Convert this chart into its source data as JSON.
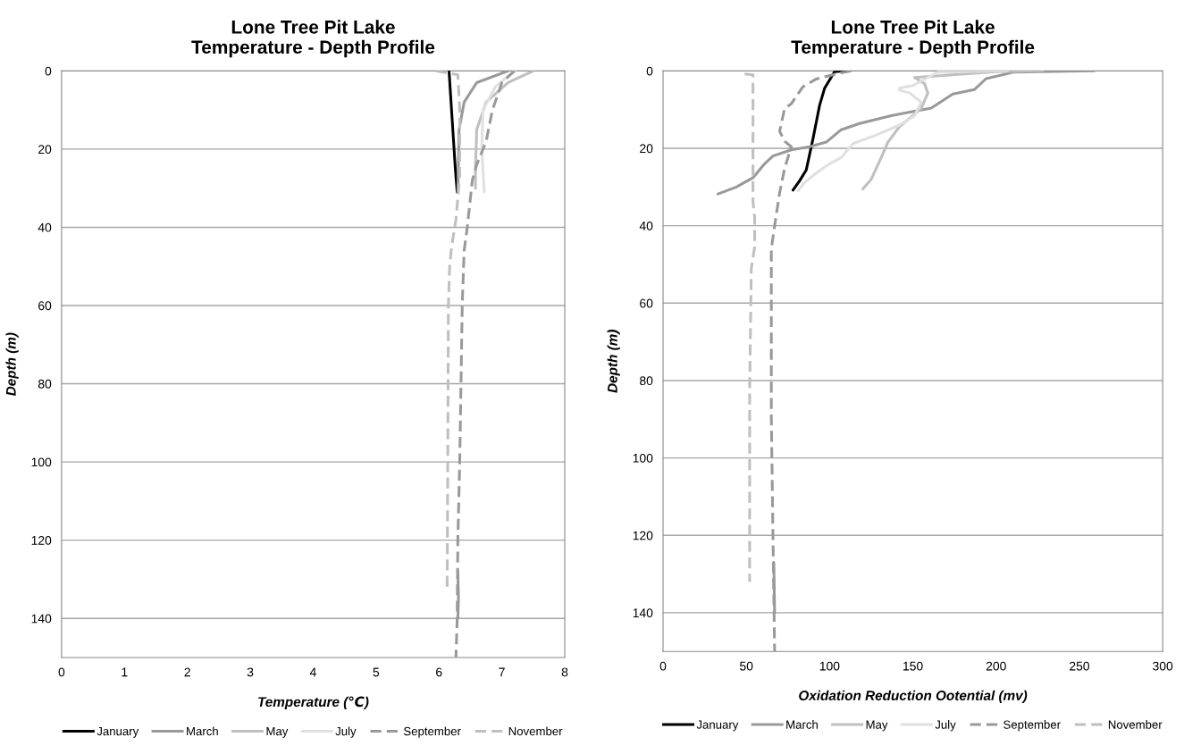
{
  "chart_data": [
    {
      "type": "line",
      "title": "Lone Tree Pit Lake\nTemperature - Depth Profile",
      "xlabel": "Temperature (℃)",
      "ylabel": "Depth (m)",
      "xlim": [
        0,
        8
      ],
      "xticks": [
        0,
        1,
        2,
        3,
        4,
        5,
        6,
        7,
        8
      ],
      "ylim": [
        150,
        0
      ],
      "yticks": [
        0,
        20,
        40,
        60,
        80,
        100,
        120,
        140
      ],
      "grid": "y",
      "legend": "bottom",
      "marker": "none",
      "series": [
        {
          "name": "January",
          "color": "#000000",
          "line_style": "solid",
          "x": [
            6.16,
            6.18,
            6.22,
            6.26,
            6.29
          ],
          "values": [
            0,
            5,
            15,
            25,
            31
          ]
        },
        {
          "name": "March",
          "color": "#999999",
          "line_style": "solid",
          "x": [
            7.1,
            6.6,
            6.4,
            6.32,
            6.3,
            null,
            6.3,
            6.31,
            6.3
          ],
          "values": [
            0,
            3,
            8,
            15,
            31,
            null,
            128,
            135,
            140
          ]
        },
        {
          "name": "May",
          "color": "#bfbfbf",
          "line_style": "solid",
          "x": [
            7.5,
            7.1,
            6.75,
            6.6,
            6.58,
            6.58
          ],
          "values": [
            0,
            3,
            8,
            15,
            25,
            30
          ]
        },
        {
          "name": "July",
          "color": "#e0e0e0",
          "line_style": "solid",
          "x": [
            7.2,
            6.9,
            6.7,
            6.68,
            6.72
          ],
          "values": [
            0,
            4,
            10,
            20,
            31
          ]
        },
        {
          "name": "September",
          "color": "#999999",
          "line_style": "dashed",
          "x": [
            7.2,
            7.0,
            6.85,
            6.75,
            6.6,
            6.53,
            6.45,
            6.4,
            6.37,
            6.35,
            6.33,
            6.3,
            6.29,
            6.27
          ],
          "values": [
            0,
            3,
            10,
            18,
            24,
            28,
            40,
            46,
            60,
            80,
            100,
            120,
            140,
            150
          ]
        },
        {
          "name": "November",
          "color": "#bfbfbf",
          "line_style": "dashed",
          "x": [
            5.95,
            6.3,
            6.33,
            6.33,
            6.27,
            6.2,
            6.17,
            6.15,
            6.14,
            6.13
          ],
          "values": [
            0,
            1,
            10,
            27,
            38,
            45,
            50,
            60,
            100,
            132
          ]
        }
      ]
    },
    {
      "type": "line",
      "title": "Lone Tree Pit Lake\nTemperature - Depth Profile",
      "xlabel": "Oxidation Reduction Ootential (mv)",
      "ylabel": "Depth (m)",
      "xlim": [
        0,
        300
      ],
      "xticks": [
        0,
        50,
        100,
        150,
        200,
        250,
        300
      ],
      "ylim": [
        150,
        0
      ],
      "yticks": [
        0,
        20,
        40,
        60,
        80,
        100,
        120,
        140
      ],
      "grid": "y",
      "legend": "bottom",
      "marker": "none",
      "series": [
        {
          "name": "January",
          "color": "#000000",
          "line_style": "solid",
          "x": [
            110,
            103,
            97,
            94,
            90,
            88,
            86,
            82,
            78
          ],
          "values": [
            0,
            0.2,
            4.5,
            8.9,
            17.6,
            21.6,
            25.6,
            28.4,
            30.8
          ]
        },
        {
          "name": "March",
          "color": "#999999",
          "line_style": "solid",
          "x": [
            259,
            211,
            194,
            187,
            174,
            161,
            151,
            137,
            118,
            107,
            98,
            88,
            77,
            66,
            61,
            54,
            44,
            33,
            null,
            66.5,
            67
          ],
          "values": [
            0,
            0.3,
            2,
            4.8,
            6,
            9.6,
            10.4,
            11.6,
            13.6,
            15.2,
            18.4,
            19.6,
            20.4,
            22,
            24,
            27.6,
            30,
            31.8,
            null,
            127,
            140
          ]
        },
        {
          "name": "May",
          "color": "#bfbfbf",
          "line_style": "solid",
          "x": [
            228,
            200,
            151,
            157,
            159,
            155,
            142,
            135,
            131,
            125,
            120
          ],
          "values": [
            0,
            0.2,
            1.7,
            3.3,
            5.7,
            9.7,
            14.4,
            18.4,
            22.4,
            28,
            30.5
          ]
        },
        {
          "name": "July",
          "color": "#e0e0e0",
          "line_style": "solid",
          "x": [
            207,
            165,
            156,
            150,
            142,
            142,
            148,
            155,
            151,
            142,
            129,
            114,
            107,
            100,
            92,
            85,
            81
          ],
          "values": [
            0,
            0.3,
            2.4,
            3.8,
            4.4,
            5.0,
            5.7,
            8.1,
            11.6,
            14,
            16.4,
            18.8,
            22.4,
            24,
            26.4,
            28.8,
            31
          ]
        },
        {
          "name": "September",
          "color": "#999999",
          "line_style": "dashed",
          "x": [
            113,
            103,
            92,
            84,
            77,
            73,
            70,
            73,
            77,
            73,
            70,
            67,
            65,
            65,
            65,
            66,
            67
          ],
          "values": [
            0,
            0.9,
            2.1,
            4.1,
            8.5,
            9.7,
            15.6,
            18.2,
            19.6,
            25.2,
            31.5,
            40,
            46,
            60,
            89,
            120,
            150
          ]
        },
        {
          "name": "November",
          "color": "#bfbfbf",
          "line_style": "dashed",
          "x": [
            49,
            54,
            54,
            54,
            55,
            55,
            53,
            52,
            52
          ],
          "values": [
            0.8,
            1,
            20,
            33.6,
            38,
            45.5,
            51,
            82,
            132
          ]
        }
      ]
    }
  ]
}
